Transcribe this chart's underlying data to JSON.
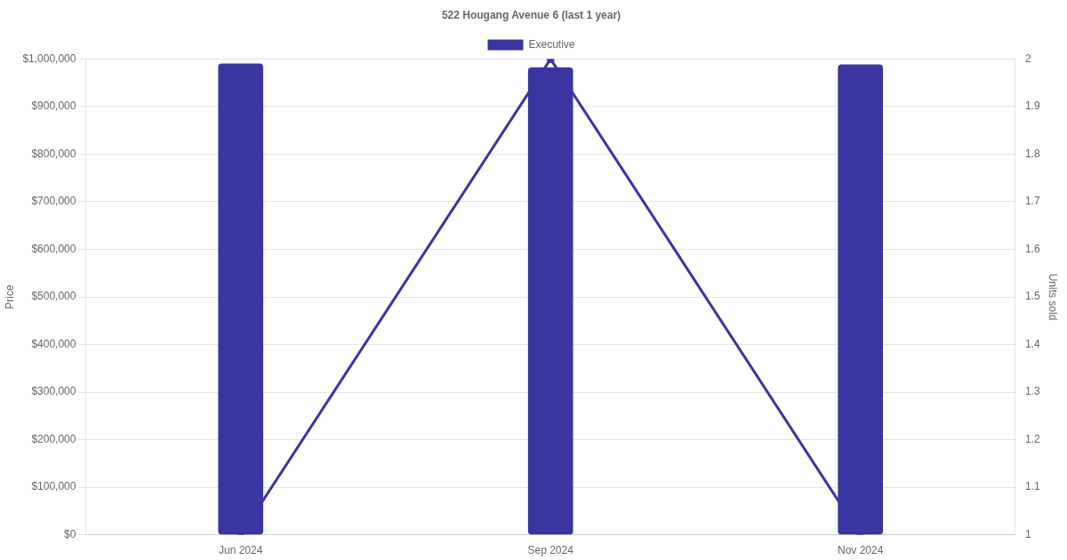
{
  "chart_data": {
    "type": "bar",
    "title": "522 Hougang Avenue 6 (last 1 year)",
    "ylabel": "Price",
    "y2label": "Units sold",
    "categories": [
      "Jun 2024",
      "Sep 2024",
      "Nov 2024"
    ],
    "series": [
      {
        "name": "Executive",
        "color": "#3a35a0",
        "values": [
          990000,
          982000,
          988000
        ]
      },
      {
        "type": "line",
        "axis": "y2",
        "color": "#3a35a0",
        "values": [
          1,
          2,
          1
        ]
      }
    ],
    "ylim": [
      0,
      1000000
    ],
    "yticks": [
      {
        "value": 0,
        "label": "$0"
      },
      {
        "value": 100000,
        "label": "$100,000"
      },
      {
        "value": 200000,
        "label": "$200,000"
      },
      {
        "value": 300000,
        "label": "$300,000"
      },
      {
        "value": 400000,
        "label": "$400,000"
      },
      {
        "value": 500000,
        "label": "$500,000"
      },
      {
        "value": 600000,
        "label": "$600,000"
      },
      {
        "value": 700000,
        "label": "$700,000"
      },
      {
        "value": 800000,
        "label": "$800,000"
      },
      {
        "value": 900000,
        "label": "$900,000"
      },
      {
        "value": 1000000,
        "label": "$1,000,000"
      }
    ],
    "y2lim": [
      1,
      2
    ],
    "y2ticks": [
      1,
      1.1,
      1.2,
      1.3,
      1.4,
      1.5,
      1.6,
      1.7,
      1.8,
      1.9,
      2
    ],
    "grid": "y",
    "legend": "top",
    "marker": "circle",
    "line_style": "solid"
  }
}
